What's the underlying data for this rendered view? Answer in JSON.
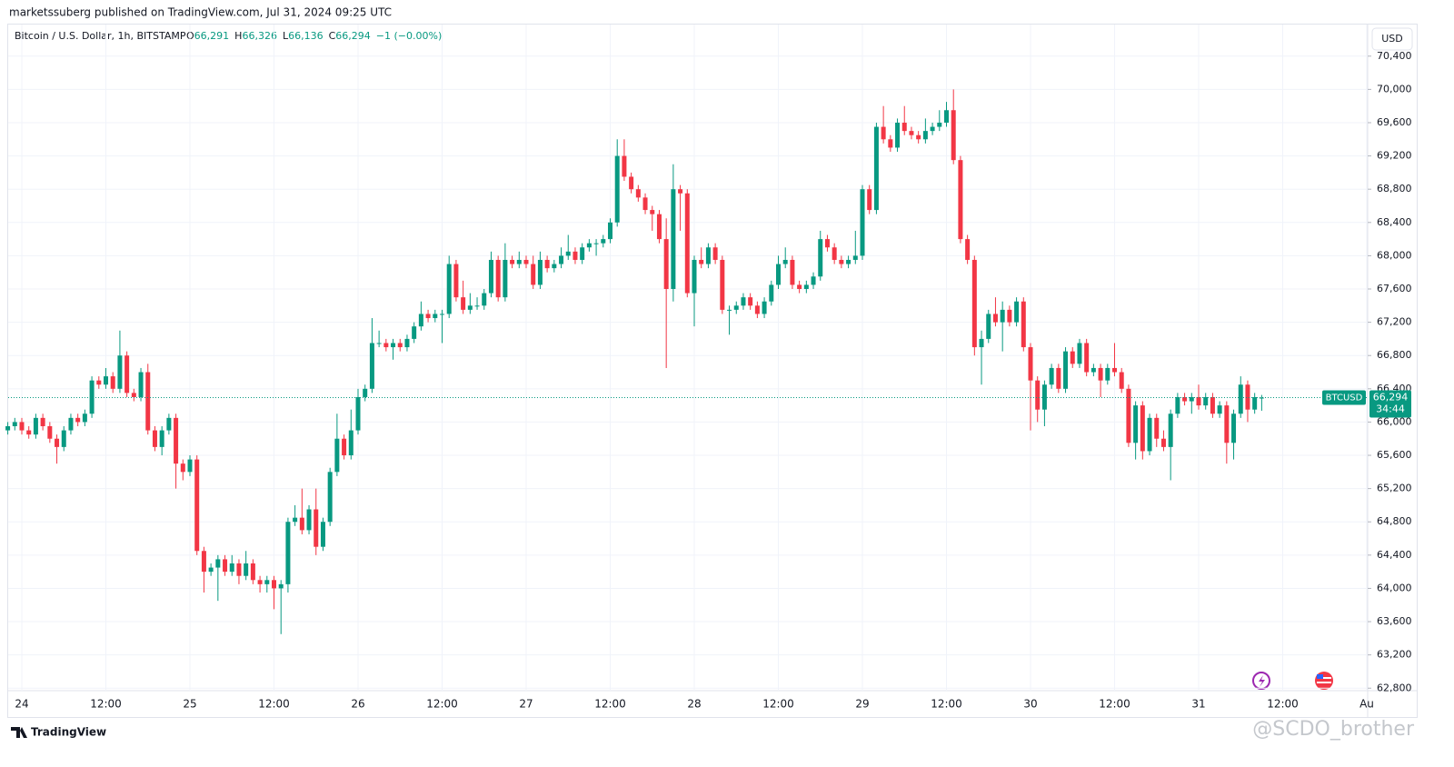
{
  "header": {
    "published": "marketssuberg published on TradingView.com, Jul 31, 2024 09:25 UTC"
  },
  "chart_data": {
    "type": "candlestick",
    "title": "Bitcoin / U.S. Dollar, 1h, BITSTAMP",
    "ohlc": [
      {
        "label": "O",
        "value": "66,291"
      },
      {
        "label": "H",
        "value": "66,326"
      },
      {
        "label": "L",
        "value": "66,136"
      },
      {
        "label": "C",
        "value": "66,294"
      }
    ],
    "change": "−1 (−0.00%)",
    "currency": "USD",
    "symbol": "BTCUSD",
    "last_price_label": "66,294",
    "countdown": "34:44",
    "up_color": "#089981",
    "down_color": "#f23645",
    "grid": true,
    "ylim": [
      62770,
      70780
    ],
    "yticks": [
      {
        "value": 62800,
        "label": "62,800"
      },
      {
        "value": 63200,
        "label": "63,200"
      },
      {
        "value": 63600,
        "label": "63,600"
      },
      {
        "value": 64000,
        "label": "64,000"
      },
      {
        "value": 64400,
        "label": "64,400"
      },
      {
        "value": 64800,
        "label": "64,800"
      },
      {
        "value": 65200,
        "label": "65,200"
      },
      {
        "value": 65600,
        "label": "65,600"
      },
      {
        "value": 66000,
        "label": "66,000"
      },
      {
        "value": 66400,
        "label": "66,400"
      },
      {
        "value": 66800,
        "label": "66,800"
      },
      {
        "value": 67200,
        "label": "67,200"
      },
      {
        "value": 67600,
        "label": "67,600"
      },
      {
        "value": 68000,
        "label": "68,000"
      },
      {
        "value": 68400,
        "label": "68,400"
      },
      {
        "value": 68800,
        "label": "68,800"
      },
      {
        "value": 69200,
        "label": "69,200"
      },
      {
        "value": 69600,
        "label": "69,600"
      },
      {
        "value": 70000,
        "label": "70,000"
      },
      {
        "value": 70400,
        "label": "70,400"
      }
    ],
    "categories": [
      null,
      null,
      "24",
      null,
      null,
      null,
      null,
      null,
      null,
      null,
      null,
      null,
      null,
      null,
      "12:00",
      null,
      null,
      null,
      null,
      null,
      null,
      null,
      null,
      null,
      null,
      null,
      "25",
      null,
      null,
      null,
      null,
      null,
      null,
      null,
      null,
      null,
      null,
      null,
      "12:00",
      null,
      null,
      null,
      null,
      null,
      null,
      null,
      null,
      null,
      null,
      null,
      "26",
      null,
      null,
      null,
      null,
      null,
      null,
      null,
      null,
      null,
      null,
      null,
      "12:00",
      null,
      null,
      null,
      null,
      null,
      null,
      null,
      null,
      null,
      null,
      null,
      "27",
      null,
      null,
      null,
      null,
      null,
      null,
      null,
      null,
      null,
      null,
      null,
      "12:00",
      null,
      null,
      null,
      null,
      null,
      null,
      null,
      null,
      null,
      null,
      null,
      "28",
      null,
      null,
      null,
      null,
      null,
      null,
      null,
      null,
      null,
      null,
      null,
      "12:00",
      null,
      null,
      null,
      null,
      null,
      null,
      null,
      null,
      null,
      null,
      null,
      "29",
      null,
      null,
      null,
      null,
      null,
      null,
      null,
      null,
      null,
      null,
      null,
      "12:00",
      null,
      null,
      null,
      null,
      null,
      null,
      null,
      null,
      null,
      null,
      null,
      "30",
      null,
      null,
      null,
      null,
      null,
      null,
      null,
      null,
      null,
      null,
      null,
      "12:00",
      null,
      null,
      null,
      null,
      null,
      null,
      null,
      null,
      null,
      null,
      null,
      "31",
      null,
      null,
      null,
      null,
      null,
      null,
      null,
      null,
      null,
      null,
      null,
      "12:00",
      null,
      null,
      null,
      null,
      null,
      null,
      null,
      null,
      null,
      null,
      null,
      "Au"
    ],
    "values": [
      [
        65900,
        66000,
        65850,
        65950
      ],
      [
        65950,
        66050,
        65900,
        66000
      ],
      [
        66000,
        66050,
        65850,
        65900
      ],
      [
        65900,
        65950,
        65800,
        65850
      ],
      [
        65850,
        66100,
        65800,
        66050
      ],
      [
        66050,
        66100,
        65900,
        65950
      ],
      [
        65950,
        66000,
        65750,
        65800
      ],
      [
        65800,
        65850,
        65500,
        65700
      ],
      [
        65700,
        65950,
        65650,
        65900
      ],
      [
        65900,
        66100,
        65850,
        66050
      ],
      [
        66050,
        66100,
        65950,
        66000
      ],
      [
        66000,
        66150,
        65950,
        66100
      ],
      [
        66100,
        66550,
        66050,
        66500
      ],
      [
        66500,
        66550,
        66400,
        66450
      ],
      [
        66450,
        66650,
        66400,
        66550
      ],
      [
        66550,
        66600,
        66350,
        66400
      ],
      [
        66400,
        67100,
        66350,
        66800
      ],
      [
        66800,
        66850,
        66300,
        66350
      ],
      [
        66350,
        66400,
        66250,
        66300
      ],
      [
        66300,
        66650,
        66250,
        66600
      ],
      [
        66600,
        66700,
        65850,
        65900
      ],
      [
        65900,
        65950,
        65650,
        65700
      ],
      [
        65700,
        65950,
        65600,
        65900
      ],
      [
        65900,
        66100,
        65850,
        66050
      ],
      [
        66050,
        66100,
        65200,
        65500
      ],
      [
        65500,
        65550,
        65300,
        65400
      ],
      [
        65400,
        65600,
        65350,
        65550
      ],
      [
        65550,
        65600,
        64400,
        64450
      ],
      [
        64450,
        64500,
        63950,
        64200
      ],
      [
        64200,
        64300,
        64150,
        64250
      ],
      [
        64250,
        64400,
        63850,
        64350
      ],
      [
        64350,
        64400,
        64150,
        64200
      ],
      [
        64200,
        64400,
        64150,
        64300
      ],
      [
        64300,
        64350,
        64050,
        64150
      ],
      [
        64150,
        64450,
        64100,
        64300
      ],
      [
        64300,
        64350,
        64050,
        64100
      ],
      [
        64100,
        64150,
        63950,
        64050
      ],
      [
        64050,
        64150,
        63950,
        64100
      ],
      [
        64100,
        64150,
        63750,
        64000
      ],
      [
        64000,
        64100,
        63450,
        64050
      ],
      [
        64050,
        64850,
        63950,
        64800
      ],
      [
        64800,
        65000,
        64750,
        64850
      ],
      [
        64850,
        65200,
        64650,
        64700
      ],
      [
        64700,
        65000,
        64650,
        64950
      ],
      [
        64950,
        65200,
        64400,
        64500
      ],
      [
        64500,
        64850,
        64450,
        64800
      ],
      [
        64800,
        65450,
        64750,
        65400
      ],
      [
        65400,
        66100,
        65350,
        65800
      ],
      [
        65800,
        65850,
        65550,
        65600
      ],
      [
        65600,
        66150,
        65550,
        65900
      ],
      [
        65900,
        66400,
        65850,
        66300
      ],
      [
        66300,
        66450,
        66250,
        66400
      ],
      [
        66400,
        67250,
        66350,
        66950
      ],
      [
        66950,
        67100,
        66900,
        66950
      ],
      [
        66950,
        67000,
        66850,
        66900
      ],
      [
        66900,
        67000,
        66750,
        66950
      ],
      [
        66950,
        67000,
        66850,
        66900
      ],
      [
        66900,
        67050,
        66850,
        67000
      ],
      [
        67000,
        67200,
        66950,
        67150
      ],
      [
        67150,
        67450,
        67100,
        67300
      ],
      [
        67300,
        67350,
        67200,
        67250
      ],
      [
        67250,
        67350,
        67200,
        67300
      ],
      [
        67300,
        67350,
        66950,
        67300
      ],
      [
        67300,
        68000,
        67250,
        67900
      ],
      [
        67900,
        67950,
        67450,
        67500
      ],
      [
        67500,
        67700,
        67300,
        67350
      ],
      [
        67350,
        67550,
        67300,
        67400
      ],
      [
        67400,
        67500,
        67350,
        67400
      ],
      [
        67400,
        67600,
        67350,
        67550
      ],
      [
        67550,
        68050,
        67500,
        67950
      ],
      [
        67950,
        68000,
        67450,
        67500
      ],
      [
        67500,
        68150,
        67450,
        67950
      ],
      [
        67950,
        68000,
        67850,
        67900
      ],
      [
        67900,
        68050,
        67850,
        67950
      ],
      [
        67950,
        68000,
        67850,
        67900
      ],
      [
        67900,
        68000,
        67600,
        67650
      ],
      [
        67650,
        68050,
        67600,
        67950
      ],
      [
        67950,
        68000,
        67800,
        67850
      ],
      [
        67850,
        67950,
        67800,
        67900
      ],
      [
        67900,
        68100,
        67850,
        68000
      ],
      [
        68000,
        68250,
        67950,
        68050
      ],
      [
        68050,
        68100,
        67900,
        67950
      ],
      [
        67950,
        68150,
        67900,
        68100
      ],
      [
        68100,
        68200,
        68050,
        68150
      ],
      [
        68150,
        68200,
        68000,
        68150
      ],
      [
        68150,
        68250,
        68100,
        68200
      ],
      [
        68200,
        68450,
        68150,
        68400
      ],
      [
        68400,
        69400,
        68350,
        69200
      ],
      [
        69200,
        69400,
        68900,
        68950
      ],
      [
        68950,
        69000,
        68750,
        68800
      ],
      [
        68800,
        68850,
        68650,
        68700
      ],
      [
        68700,
        68750,
        68500,
        68550
      ],
      [
        68550,
        68600,
        68300,
        68500
      ],
      [
        68500,
        68550,
        68150,
        68200
      ],
      [
        68200,
        68450,
        66650,
        67600
      ],
      [
        67600,
        69100,
        67450,
        68800
      ],
      [
        68800,
        68850,
        68300,
        68750
      ],
      [
        68750,
        68800,
        67500,
        67550
      ],
      [
        67550,
        68000,
        67150,
        67950
      ],
      [
        67950,
        68100,
        67850,
        67900
      ],
      [
        67900,
        68150,
        67850,
        68100
      ],
      [
        68100,
        68150,
        67900,
        67950
      ],
      [
        67950,
        68000,
        67300,
        67350
      ],
      [
        67350,
        67400,
        67050,
        67350
      ],
      [
        67350,
        67450,
        67300,
        67400
      ],
      [
        67400,
        67550,
        67350,
        67500
      ],
      [
        67500,
        67550,
        67350,
        67400
      ],
      [
        67400,
        67450,
        67250,
        67300
      ],
      [
        67300,
        67500,
        67250,
        67450
      ],
      [
        67450,
        67700,
        67400,
        67650
      ],
      [
        67650,
        68000,
        67600,
        67900
      ],
      [
        67900,
        68100,
        67850,
        67950
      ],
      [
        67950,
        68000,
        67600,
        67650
      ],
      [
        67650,
        67700,
        67550,
        67600
      ],
      [
        67600,
        67700,
        67550,
        67650
      ],
      [
        67650,
        67800,
        67600,
        67750
      ],
      [
        67750,
        68300,
        67700,
        68200
      ],
      [
        68200,
        68250,
        68050,
        68100
      ],
      [
        68100,
        68150,
        67900,
        67950
      ],
      [
        67950,
        68000,
        67850,
        67900
      ],
      [
        67900,
        68000,
        67850,
        67950
      ],
      [
        67950,
        68300,
        67900,
        68000
      ],
      [
        68000,
        68850,
        67950,
        68800
      ],
      [
        68800,
        68850,
        68500,
        68550
      ],
      [
        68550,
        69600,
        68500,
        69550
      ],
      [
        69550,
        69800,
        69350,
        69400
      ],
      [
        69400,
        69450,
        69250,
        69300
      ],
      [
        69300,
        69650,
        69250,
        69600
      ],
      [
        69600,
        69800,
        69450,
        69500
      ],
      [
        69500,
        69550,
        69400,
        69450
      ],
      [
        69450,
        69500,
        69350,
        69400
      ],
      [
        69400,
        69650,
        69350,
        69500
      ],
      [
        69500,
        69600,
        69450,
        69550
      ],
      [
        69550,
        69750,
        69500,
        69600
      ],
      [
        69600,
        69850,
        69550,
        69750
      ],
      [
        69750,
        70000,
        69100,
        69150
      ],
      [
        69150,
        69200,
        68150,
        68200
      ],
      [
        68200,
        68250,
        67900,
        67950
      ],
      [
        67950,
        68000,
        66800,
        66900
      ],
      [
        66900,
        67100,
        66450,
        67000
      ],
      [
        67000,
        67350,
        66950,
        67300
      ],
      [
        67300,
        67500,
        67150,
        67200
      ],
      [
        67200,
        67450,
        66850,
        67350
      ],
      [
        67350,
        67400,
        67150,
        67200
      ],
      [
        67200,
        67500,
        67150,
        67450
      ],
      [
        67450,
        67500,
        66850,
        66900
      ],
      [
        66900,
        66950,
        65900,
        66500
      ],
      [
        66500,
        66550,
        66000,
        66150
      ],
      [
        66150,
        66500,
        65950,
        66450
      ],
      [
        66450,
        66700,
        66400,
        66650
      ],
      [
        66650,
        66700,
        66350,
        66400
      ],
      [
        66400,
        66900,
        66350,
        66850
      ],
      [
        66850,
        66900,
        66650,
        66700
      ],
      [
        66700,
        67000,
        66650,
        66950
      ],
      [
        66950,
        67000,
        66550,
        66600
      ],
      [
        66600,
        66700,
        66550,
        66650
      ],
      [
        66650,
        66700,
        66300,
        66500
      ],
      [
        66500,
        66700,
        66450,
        66650
      ],
      [
        66650,
        66950,
        66550,
        66600
      ],
      [
        66600,
        66650,
        66350,
        66400
      ],
      [
        66400,
        66450,
        65700,
        65750
      ],
      [
        65750,
        66250,
        65550,
        66200
      ],
      [
        66200,
        66250,
        65550,
        65650
      ],
      [
        65650,
        66100,
        65600,
        66050
      ],
      [
        66050,
        66100,
        65700,
        65800
      ],
      [
        65800,
        65900,
        65650,
        65700
      ],
      [
        65700,
        66150,
        65300,
        66100
      ],
      [
        66100,
        66350,
        66050,
        66300
      ],
      [
        66300,
        66350,
        66200,
        66250
      ],
      [
        66250,
        66350,
        66100,
        66300
      ],
      [
        66300,
        66450,
        66150,
        66200
      ],
      [
        66200,
        66350,
        66150,
        66300
      ],
      [
        66300,
        66350,
        66050,
        66100
      ],
      [
        66100,
        66250,
        66050,
        66200
      ],
      [
        66200,
        66250,
        65500,
        65750
      ],
      [
        65750,
        66150,
        65550,
        66100
      ],
      [
        66100,
        66550,
        66050,
        66450
      ],
      [
        66450,
        66500,
        66000,
        66150
      ],
      [
        66150,
        66350,
        66100,
        66300
      ],
      [
        66291,
        66326,
        66136,
        66294
      ],
      null,
      null,
      null,
      null,
      null,
      null,
      null,
      null,
      null,
      null,
      null,
      null,
      null,
      null,
      null
    ]
  },
  "footer": {
    "brand": "TradingView",
    "watermark": "@SCDO_brother"
  }
}
